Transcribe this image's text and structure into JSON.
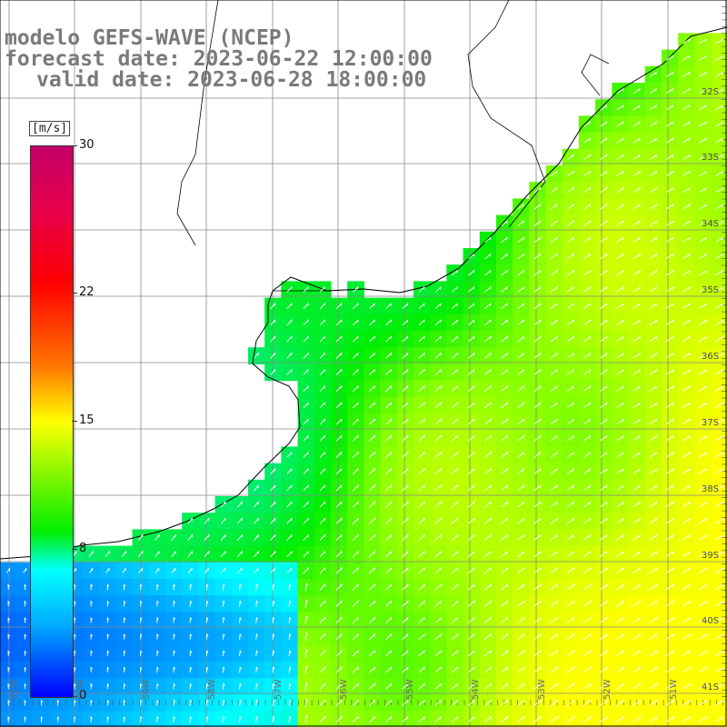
{
  "title": {
    "model": "modelo GEFS-WAVE (NCEP)",
    "forecast": "forecast date: 2023-06-22 12:00:00",
    "valid": "valid date: 2023-06-28 18:00:00"
  },
  "legend": {
    "unit": "[m/s]",
    "ticks": [
      "30",
      "22",
      "15",
      "8",
      "0"
    ],
    "tick_values": [
      30,
      22,
      15,
      8,
      0
    ],
    "colors": [
      "#0000ff",
      "#00aaff",
      "#00ffff",
      "#00ee00",
      "#ffff00",
      "#ff7700",
      "#ff0000",
      "#c4006a"
    ]
  },
  "map": {
    "lat_labels": [
      "32S",
      "33S",
      "34S",
      "35S",
      "36S",
      "37S",
      "38S",
      "39S",
      "40S",
      "41S"
    ],
    "lon_labels": [
      "61W",
      "60W",
      "59W",
      "58W",
      "57W",
      "56W",
      "55W",
      "54W",
      "53W",
      "52W",
      "51W"
    ],
    "land_color": "#ffffff",
    "grid_color": "#888888"
  }
}
